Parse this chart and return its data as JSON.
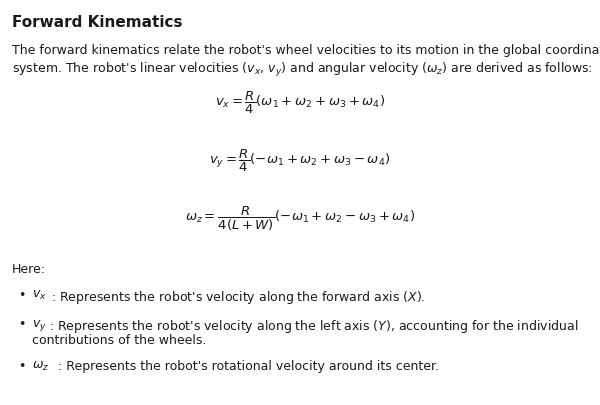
{
  "title": "Forward Kinematics",
  "background_color": "#ffffff",
  "text_color": "#1a1a1a",
  "fig_width": 6.0,
  "fig_height": 4.05,
  "intro_line1": "The forward kinematics relate the robot's wheel velocities to its motion in the global coordinate",
  "intro_line2": "system. The robot's linear velocities ($v_x$, $v_y$) and angular velocity ($\\omega_z$) are derived as follows:",
  "eq1": "$v_x = \\dfrac{R}{4}(\\omega_1 + \\omega_2 + \\omega_3 + \\omega_4)$",
  "eq2": "$v_y = \\dfrac{R}{4}(-\\omega_1 + \\omega_2 + \\omega_3 - \\omega_4)$",
  "eq3": "$\\omega_z = \\dfrac{R}{4(L + W)}(-\\omega_1 + \\omega_2 - \\omega_3 + \\omega_4)$",
  "here_label": "Here:",
  "bullet1_math": "$v_x$",
  "bullet1_text": ": Represents the robot's velocity along the forward axis ($X$).",
  "bullet2_math": "$v_y$",
  "bullet2_text": ": Represents the robot's velocity along the left axis ($Y$), accounting for the individual",
  "bullet2_text2": "contributions of the wheels.",
  "bullet3_math": "$\\omega_z$",
  "bullet3_text": ": Represents the robot's rotational velocity around its center.",
  "font_size_title": 11,
  "font_size_body": 9,
  "font_size_eq": 9.5
}
